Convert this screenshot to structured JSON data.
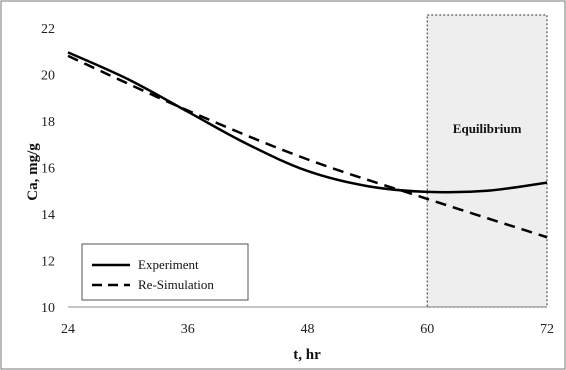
{
  "chart_data": {
    "type": "line",
    "xlabel": "t, hr",
    "ylabel": "Ca, mg/g",
    "xlim": [
      24,
      72
    ],
    "ylim": [
      10,
      22
    ],
    "x_ticks": [
      "24",
      "36",
      "48",
      "60",
      "72"
    ],
    "y_ticks": [
      "10",
      "12",
      "14",
      "16",
      "18",
      "20",
      "22"
    ],
    "grid": false,
    "legend_position": "bottom-left",
    "series": [
      {
        "name": "Experiment",
        "style": "solid",
        "points": [
          [
            24,
            20.95
          ],
          [
            30,
            19.8
          ],
          [
            36,
            18.4
          ],
          [
            42,
            17.0
          ],
          [
            48,
            15.85
          ],
          [
            54,
            15.2
          ],
          [
            60,
            14.95
          ],
          [
            66,
            15.0
          ],
          [
            72,
            15.35
          ]
        ]
      },
      {
        "name": "Re-Simulation",
        "style": "dashed",
        "points": [
          [
            24,
            20.8
          ],
          [
            36,
            18.45
          ],
          [
            48,
            16.35
          ],
          [
            60,
            14.65
          ],
          [
            72,
            13.0
          ]
        ]
      }
    ],
    "annotation": {
      "label": "Equilibrium",
      "x_start": 60,
      "x_end": 72
    }
  },
  "colors": {
    "line": "#000000",
    "shade": "#eeeeee",
    "border": "#555555"
  }
}
